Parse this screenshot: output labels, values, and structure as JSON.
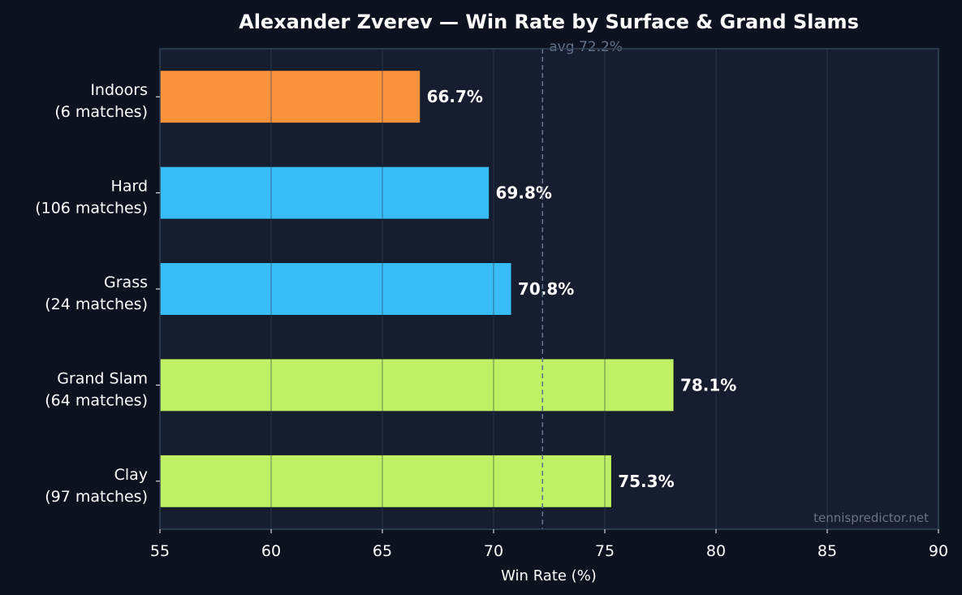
{
  "chart_data": {
    "type": "bar",
    "orientation": "horizontal",
    "title": "Alexander Zverev — Win Rate by Surface & Grand Slams",
    "xlabel": "Win Rate (%)",
    "ylabel": "",
    "xlim": [
      55,
      90
    ],
    "xticks": [
      55,
      60,
      65,
      70,
      75,
      80,
      85,
      90
    ],
    "grid": true,
    "categories": [
      {
        "name": "Indoors",
        "matches": "(6 matches)",
        "value": 66.7,
        "label": "66.7%",
        "color": "#fb923c"
      },
      {
        "name": "Hard",
        "matches": "(106 matches)",
        "value": 69.8,
        "label": "69.8%",
        "color": "#38bdf8"
      },
      {
        "name": "Grass",
        "matches": "(24 matches)",
        "value": 70.8,
        "label": "70.8%",
        "color": "#38bdf8"
      },
      {
        "name": "Grand Slam",
        "matches": "(64 matches)",
        "value": 78.1,
        "label": "78.1%",
        "color": "#bef264"
      },
      {
        "name": "Clay",
        "matches": "(97 matches)",
        "value": 75.3,
        "label": "75.3%",
        "color": "#bef264"
      }
    ],
    "average": {
      "value": 72.2,
      "label": "avg 72.2%"
    },
    "watermark": "tennispredictor.net"
  },
  "colors": {
    "background": "#0c1220",
    "plot_background": "#161d2f",
    "spine": "#334155",
    "grid": "#243042",
    "avg_line": "#64748b"
  }
}
